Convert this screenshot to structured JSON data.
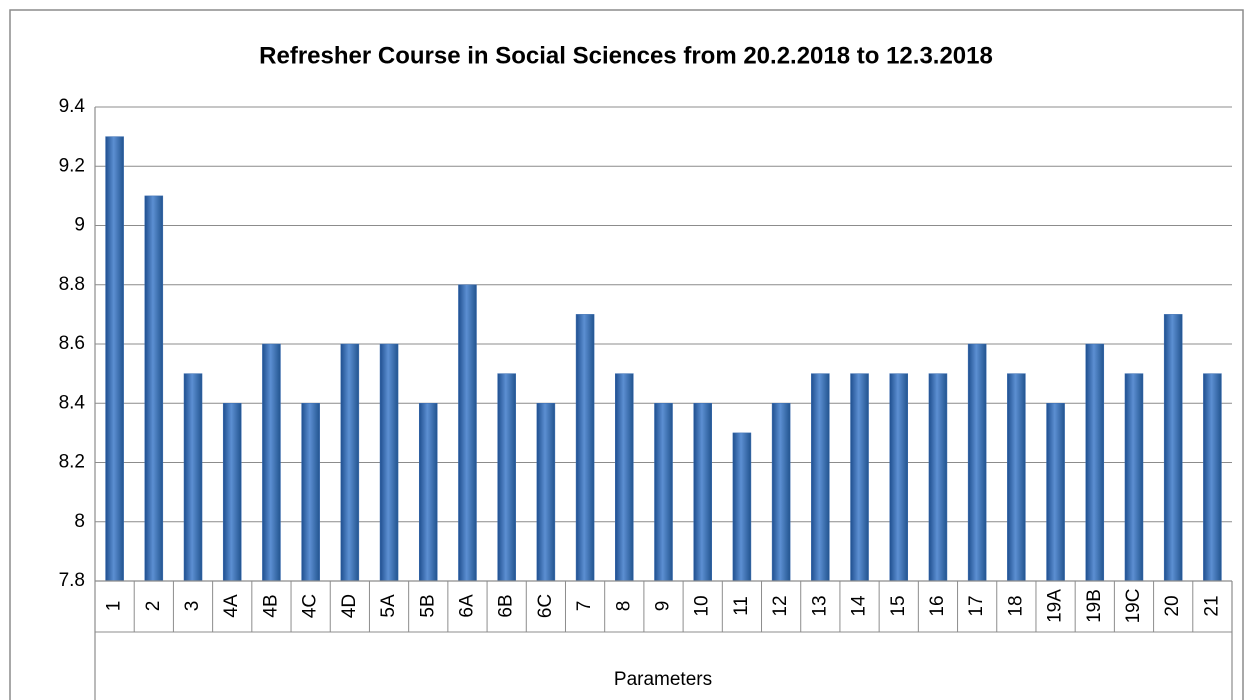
{
  "chart_data": {
    "type": "bar",
    "title": "Refresher Course in Social Sciences from 20.2.2018 to 12.3.2018",
    "x_label": "Parameters",
    "categories": [
      "1",
      "2",
      "3",
      "4A",
      "4B",
      "4C",
      "4D",
      "5A",
      "5B",
      "6A",
      "6B",
      "6C",
      "7",
      "8",
      "9",
      "10",
      "11",
      "12",
      "13",
      "14",
      "15",
      "16",
      "17",
      "18",
      "19A",
      "19B",
      "19C",
      "20",
      "21"
    ],
    "values": [
      9.3,
      9.1,
      8.5,
      8.4,
      8.6,
      8.4,
      8.6,
      8.6,
      8.4,
      8.8,
      8.5,
      8.4,
      8.7,
      8.5,
      8.4,
      8.4,
      8.3,
      8.4,
      8.5,
      8.5,
      8.5,
      8.5,
      8.6,
      8.5,
      8.4,
      8.6,
      8.5,
      8.7,
      8.5
    ],
    "color": "#3a6cb0",
    "ylim": [
      7.8,
      9.4
    ],
    "yticks": [
      7.8,
      8,
      8.2,
      8.4,
      8.6,
      8.8,
      9,
      9.2,
      9.4
    ],
    "grid": true
  }
}
